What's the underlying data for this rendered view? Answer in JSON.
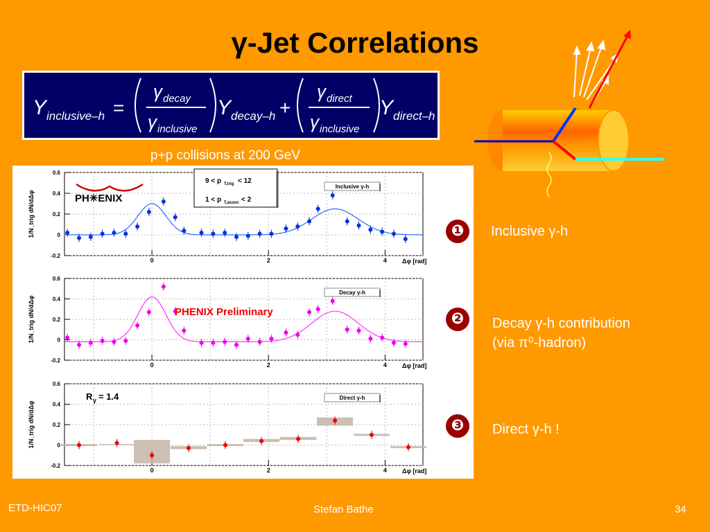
{
  "slide": {
    "title": "γ-Jet Correlations",
    "subtitle": "p+p collisions at 200 GeV",
    "background_color": "#ff9900",
    "footer": {
      "left": "ETD-HIC07",
      "center": "Stefan Bathe",
      "right": "34"
    }
  },
  "equation": {
    "lhs": "Y",
    "lhs_sub": "inclusive–h",
    "equals": "=",
    "frac1_num": "γ",
    "frac1_num_sub": "decay",
    "frac1_den": "γ",
    "frac1_den_sub": "inclusive",
    "term1": "Y",
    "term1_sub": "decay–h",
    "plus": "+",
    "frac2_num": "γ",
    "frac2_num_sub": "direct",
    "frac2_den": "γ",
    "frac2_den_sub": "inclusive",
    "term2": "Y",
    "term2_sub": "direct–h"
  },
  "labels": [
    {
      "number": "❶",
      "text": "Inclusive γ-h"
    },
    {
      "number": "❷",
      "line1": "Decay γ-h contribution",
      "line2": "(via π⁰-hadron)"
    },
    {
      "number": "❸",
      "text": "Direct γ-h !"
    }
  ],
  "cuts": {
    "line1": "9 < p",
    "line1_sub": "T,trig",
    "line1_end": " < 12",
    "line2": "1 < p",
    "line2_sub": "T,assoc",
    "line2_end": " < 2"
  },
  "logo_text": "PH✳ENIX",
  "preliminary_text": "PHENIX Preliminary",
  "rgamma_text": "R",
  "rgamma_sub": "γ",
  "rgamma_end": " = 1.4",
  "chart_data": [
    {
      "type": "scatter",
      "title": "Inclusive γ-h",
      "xlabel": "Δφ [rad]",
      "ylabel": "1/N_trig dN/dΔφ",
      "xlim": [
        -1.5,
        4.65
      ],
      "ylim": [
        -0.2,
        0.6
      ],
      "xticks": [
        "0",
        "2",
        "4"
      ],
      "yticks": [
        "-0.2",
        "0",
        "0.2",
        "0.4",
        "0.6"
      ],
      "marker_color": "#0033dd",
      "fit_color": "#3366ff",
      "fit": {
        "baseline": 0.0,
        "near_amp": 0.3,
        "near_sigma": 0.24,
        "away_amp": 0.25,
        "away_sigma": 0.4
      },
      "x": [
        -1.45,
        -1.25,
        -1.05,
        -0.85,
        -0.65,
        -0.45,
        -0.25,
        -0.05,
        0.2,
        0.4,
        0.55,
        0.85,
        1.05,
        1.25,
        1.45,
        1.65,
        1.85,
        2.05,
        2.3,
        2.5,
        2.7,
        2.85,
        3.1,
        3.35,
        3.55,
        3.75,
        3.95,
        4.15,
        4.35
      ],
      "y": [
        0.02,
        -0.03,
        -0.02,
        0.01,
        0.02,
        0.01,
        0.08,
        0.22,
        0.32,
        0.17,
        0.04,
        0.02,
        0.01,
        0.02,
        -0.02,
        -0.01,
        0.01,
        0.01,
        0.06,
        0.08,
        0.13,
        0.25,
        0.38,
        0.13,
        0.09,
        0.05,
        0.03,
        0.01,
        -0.04
      ],
      "legend": "Inclusive γ-h"
    },
    {
      "type": "scatter",
      "title": "Decay γ-h",
      "xlabel": "Δφ [rad]",
      "ylabel": "1/N_trig dN/dΔφ",
      "xlim": [
        -1.5,
        4.65
      ],
      "ylim": [
        -0.2,
        0.6
      ],
      "xticks": [
        "0",
        "2",
        "4"
      ],
      "yticks": [
        "-0.2",
        "0",
        "0.2",
        "0.4",
        "0.6"
      ],
      "marker_color": "#ee00ee",
      "fit_color": "#ff33ff",
      "fit": {
        "baseline": -0.02,
        "near_amp": 0.44,
        "near_sigma": 0.24,
        "away_amp": 0.3,
        "away_sigma": 0.4
      },
      "x": [
        -1.45,
        -1.25,
        -1.05,
        -0.85,
        -0.65,
        -0.45,
        -0.25,
        -0.05,
        0.2,
        0.4,
        0.55,
        0.85,
        1.05,
        1.25,
        1.45,
        1.65,
        1.85,
        2.05,
        2.3,
        2.5,
        2.7,
        2.85,
        3.1,
        3.35,
        3.55,
        3.75,
        3.95,
        4.15,
        4.35
      ],
      "y": [
        0.02,
        -0.05,
        -0.03,
        -0.01,
        -0.02,
        -0.01,
        0.14,
        0.27,
        0.52,
        0.28,
        0.09,
        -0.03,
        -0.03,
        -0.02,
        -0.05,
        0.01,
        -0.02,
        0.01,
        0.07,
        0.05,
        0.27,
        0.3,
        0.38,
        0.1,
        0.09,
        0.01,
        0.02,
        -0.03,
        -0.04
      ],
      "legend": "Decay γ-h"
    },
    {
      "type": "scatter",
      "title": "Direct γ-h",
      "xlabel": "Δφ [rad]",
      "ylabel": "1/N_trig dN/dΔφ",
      "xlim": [
        -1.5,
        4.65
      ],
      "ylim": [
        -0.2,
        0.6
      ],
      "xticks": [
        "0",
        "2",
        "4"
      ],
      "yticks": [
        "-0.2",
        "0",
        "0.2",
        "0.4",
        "0.6"
      ],
      "marker_color": "#ee0000",
      "x": [
        -1.25,
        -0.6,
        0.0,
        0.63,
        1.26,
        1.88,
        2.51,
        3.14,
        3.77,
        4.4
      ],
      "y": [
        0.0,
        0.02,
        -0.1,
        -0.03,
        0.0,
        0.04,
        0.06,
        0.24,
        0.1,
        -0.02
      ],
      "band_low": [
        -0.01,
        0.0,
        -0.18,
        -0.04,
        -0.01,
        0.03,
        0.05,
        0.19,
        0.09,
        -0.03
      ],
      "band_high": [
        0.01,
        0.01,
        0.05,
        -0.01,
        0.01,
        0.06,
        0.08,
        0.27,
        0.11,
        -0.01
      ],
      "legend": "Direct γ-h"
    }
  ]
}
